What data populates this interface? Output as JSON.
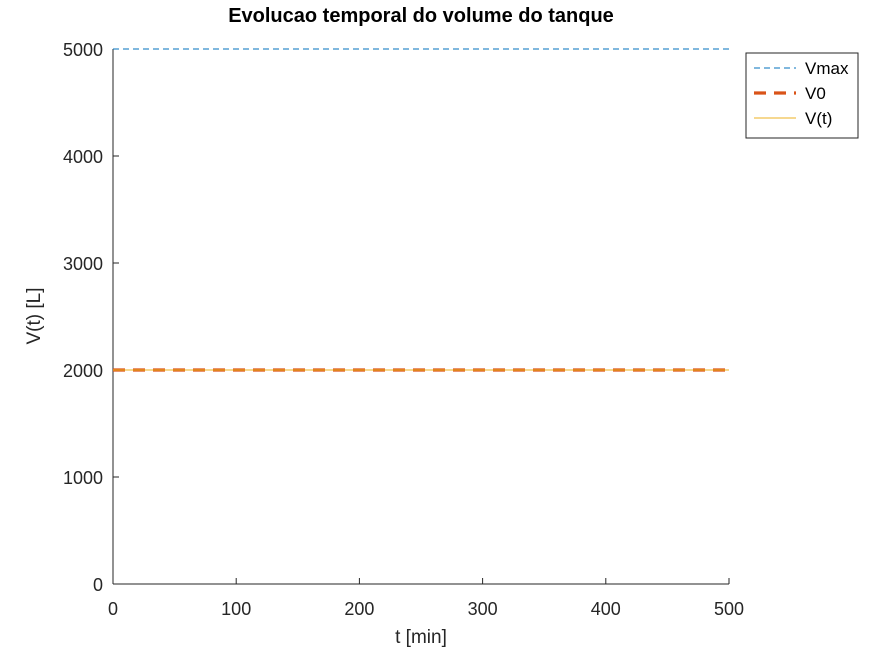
{
  "chart_data": {
    "type": "line",
    "title": "Evolucao temporal do volume do tanque",
    "xlabel": "t [min]",
    "ylabel": "V(t) [L]",
    "xlim": [
      0,
      500
    ],
    "ylim": [
      0,
      5000
    ],
    "xticks": [
      0,
      100,
      200,
      300,
      400,
      500
    ],
    "yticks": [
      0,
      1000,
      2000,
      3000,
      4000,
      5000
    ],
    "x_tick_labels": [
      "0",
      "100",
      "200",
      "300",
      "400",
      "500"
    ],
    "y_tick_labels": [
      "0",
      "1000",
      "2000",
      "3000",
      "4000",
      "5000"
    ],
    "grid": false,
    "legend_position": "top-right (outside)",
    "series": [
      {
        "name": "Vmax",
        "x": [
          0,
          500
        ],
        "y": [
          5000,
          5000
        ],
        "color": "#0072bd",
        "style": "dashed",
        "width": "thin"
      },
      {
        "name": "V0",
        "x": [
          0,
          500
        ],
        "y": [
          2000,
          2000
        ],
        "color": "#d95319",
        "style": "dashed",
        "width": "thick"
      },
      {
        "name": "V(t)",
        "x": [
          0,
          500
        ],
        "y": [
          2000,
          2000
        ],
        "color": "#edb120",
        "style": "solid",
        "width": "thin"
      }
    ]
  }
}
